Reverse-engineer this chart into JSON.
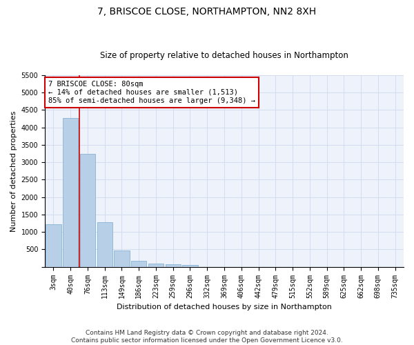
{
  "title": "7, BRISCOE CLOSE, NORTHAMPTON, NN2 8XH",
  "subtitle": "Size of property relative to detached houses in Northampton",
  "xlabel": "Distribution of detached houses by size in Northampton",
  "ylabel": "Number of detached properties",
  "categories": [
    "3sqm",
    "40sqm",
    "76sqm",
    "113sqm",
    "149sqm",
    "186sqm",
    "223sqm",
    "259sqm",
    "296sqm",
    "332sqm",
    "369sqm",
    "406sqm",
    "442sqm",
    "479sqm",
    "515sqm",
    "552sqm",
    "589sqm",
    "625sqm",
    "662sqm",
    "698sqm",
    "735sqm"
  ],
  "values": [
    1230,
    4280,
    3250,
    1280,
    460,
    180,
    95,
    70,
    50,
    0,
    0,
    0,
    0,
    0,
    0,
    0,
    0,
    0,
    0,
    0,
    0
  ],
  "bar_color": "#b8cfe8",
  "bar_edge_color": "#7aaad0",
  "grid_color": "#d0d8ee",
  "background_color": "#ffffff",
  "plot_background": "#eef2fa",
  "vline_x_index": 1,
  "vline_color": "#cc0000",
  "annotation_text": "7 BRISCOE CLOSE: 80sqm\n← 14% of detached houses are smaller (1,513)\n85% of semi-detached houses are larger (9,348) →",
  "annotation_box_color": "#ffffff",
  "annotation_box_edge": "#cc0000",
  "ylim": [
    0,
    5500
  ],
  "yticks": [
    0,
    500,
    1000,
    1500,
    2000,
    2500,
    3000,
    3500,
    4000,
    4500,
    5000,
    5500
  ],
  "footer": "Contains HM Land Registry data © Crown copyright and database right 2024.\nContains public sector information licensed under the Open Government Licence v3.0.",
  "title_fontsize": 10,
  "subtitle_fontsize": 8.5,
  "xlabel_fontsize": 8,
  "ylabel_fontsize": 8,
  "tick_fontsize": 7,
  "footer_fontsize": 6.5
}
